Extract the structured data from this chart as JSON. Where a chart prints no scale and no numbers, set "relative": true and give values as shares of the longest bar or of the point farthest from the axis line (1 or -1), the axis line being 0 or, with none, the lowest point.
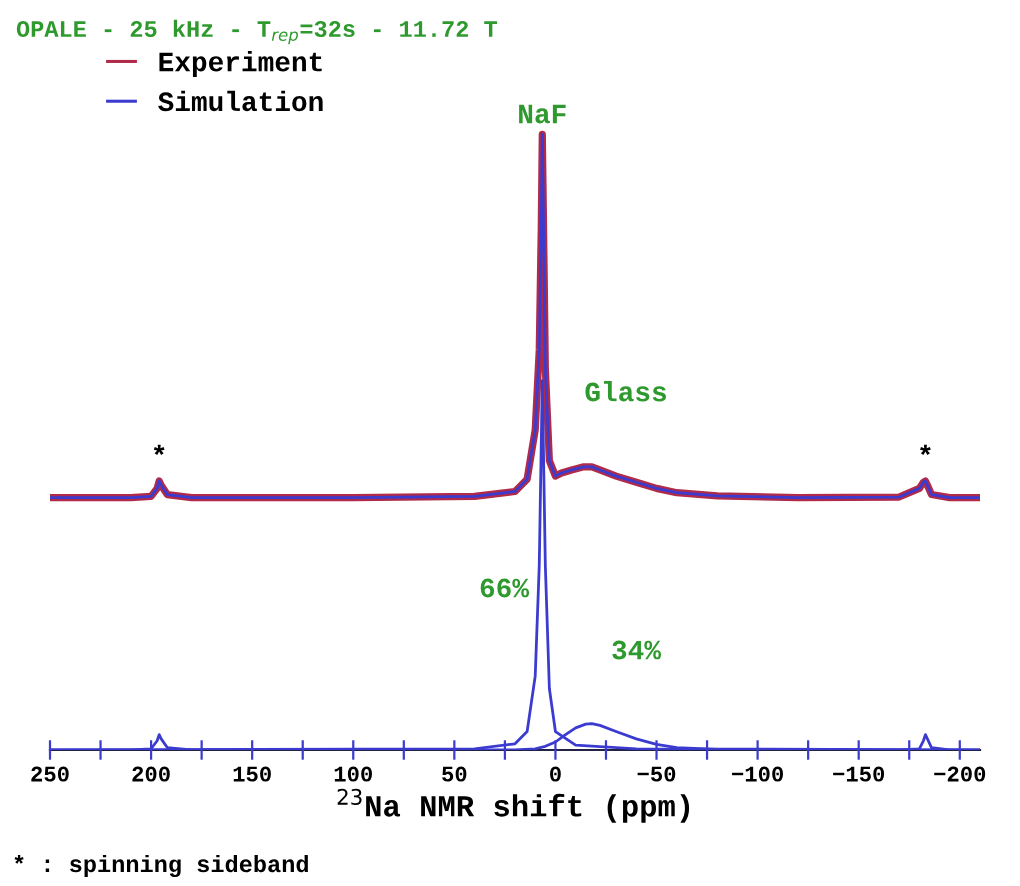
{
  "chart_data": {
    "type": "line",
    "relative": true,
    "title": "OPALE - 25 kHz - T$_{rep}$=32s - 11.72 T",
    "xlabel": "$^{23}$Na NMR shift (ppm)",
    "xlim": [
      250,
      -210
    ],
    "xticks": [
      250,
      {
        "value": 225,
        "label": null
      },
      200,
      {
        "value": 175,
        "label": null
      },
      150,
      {
        "value": 125,
        "label": null
      },
      100,
      {
        "value": 75,
        "label": null
      },
      50,
      {
        "value": 25,
        "label": null
      },
      0,
      {
        "value": -25,
        "label": null
      },
      {
        "value": -50,
        "label": "−50"
      },
      {
        "value": -75,
        "label": null
      },
      {
        "value": -100,
        "label": "−100"
      },
      {
        "value": -125,
        "label": null
      },
      {
        "value": -150,
        "label": "−150"
      },
      {
        "value": -175,
        "label": null
      },
      {
        "value": -200,
        "label": "−200"
      }
    ],
    "grid": false,
    "legend": "top left",
    "series": [
      {
        "name": "Experiment",
        "color": "#b02a4a",
        "x": [
          250,
          210,
          200,
          197,
          196,
          195,
          192,
          180,
          100,
          40,
          20,
          14,
          10,
          8,
          7,
          6.5,
          6,
          5,
          3,
          0,
          -3,
          -8,
          -14,
          -18,
          -22,
          -30,
          -40,
          -50,
          -60,
          -80,
          -120,
          -170,
          -180,
          -182,
          -183,
          -184,
          -186,
          -195,
          -210
        ],
        "values": [
          0.41,
          0.41,
          0.412,
          0.425,
          0.437,
          0.43,
          0.415,
          0.41,
          0.41,
          0.412,
          0.42,
          0.44,
          0.52,
          0.65,
          0.85,
          1.0,
          0.88,
          0.62,
          0.47,
          0.445,
          0.45,
          0.455,
          0.46,
          0.46,
          0.455,
          0.445,
          0.435,
          0.425,
          0.418,
          0.413,
          0.41,
          0.411,
          0.425,
          0.435,
          0.437,
          0.43,
          0.415,
          0.41,
          0.41
        ]
      },
      {
        "name": "Simulation",
        "color": "#3b3bd0",
        "x": [
          250,
          210,
          200,
          197,
          196,
          195,
          192,
          180,
          100,
          40,
          20,
          14,
          10,
          8,
          7,
          6.5,
          6,
          5,
          3,
          0,
          -3,
          -8,
          -14,
          -18,
          -22,
          -30,
          -40,
          -50,
          -60,
          -80,
          -120,
          -170,
          -180,
          -182,
          -183,
          -184,
          -186,
          -195,
          -210
        ],
        "values": [
          0.41,
          0.41,
          0.412,
          0.425,
          0.437,
          0.43,
          0.415,
          0.41,
          0.41,
          0.412,
          0.42,
          0.44,
          0.52,
          0.65,
          0.85,
          1.0,
          0.88,
          0.62,
          0.47,
          0.445,
          0.45,
          0.455,
          0.46,
          0.46,
          0.455,
          0.445,
          0.435,
          0.425,
          0.418,
          0.413,
          0.41,
          0.411,
          0.425,
          0.435,
          0.437,
          0.43,
          0.415,
          0.41,
          0.41
        ]
      },
      {
        "color": "#3b3bd0",
        "x": [
          250,
          40,
          20,
          14,
          10,
          8,
          7,
          6.5,
          6,
          5,
          3,
          0,
          -10,
          -40,
          -210
        ],
        "values": [
          0,
          0.002,
          0.01,
          0.03,
          0.12,
          0.3,
          0.5,
          0.6,
          0.5,
          0.3,
          0.1,
          0.03,
          0.008,
          0.002,
          0
        ]
      },
      {
        "color": "#3b3bd0",
        "x": [
          250,
          210,
          200,
          197,
          196,
          195,
          192,
          180,
          20,
          10,
          5,
          0,
          -5,
          -10,
          -15,
          -18,
          -22,
          -30,
          -40,
          -50,
          -60,
          -80,
          -170,
          -180,
          -182,
          -183,
          -184,
          -186,
          -195,
          -210
        ],
        "values": [
          0,
          0,
          0.002,
          0.015,
          0.025,
          0.018,
          0.004,
          0,
          0,
          0.002,
          0.006,
          0.013,
          0.025,
          0.036,
          0.042,
          0.043,
          0.04,
          0.03,
          0.018,
          0.009,
          0.004,
          0.001,
          0,
          0.002,
          0.015,
          0.025,
          0.018,
          0.004,
          0,
          0
        ]
      }
    ],
    "annotations": [
      {
        "text": "NaF",
        "x": 6.5,
        "y": 1.0
      },
      "Glass",
      {
        "text": "*",
        "x": 196,
        "y": 0.445
      },
      {
        "text": "*",
        "x": -183,
        "y": 0.445
      },
      "66%",
      "34%",
      "* : spinning sideband"
    ]
  }
}
